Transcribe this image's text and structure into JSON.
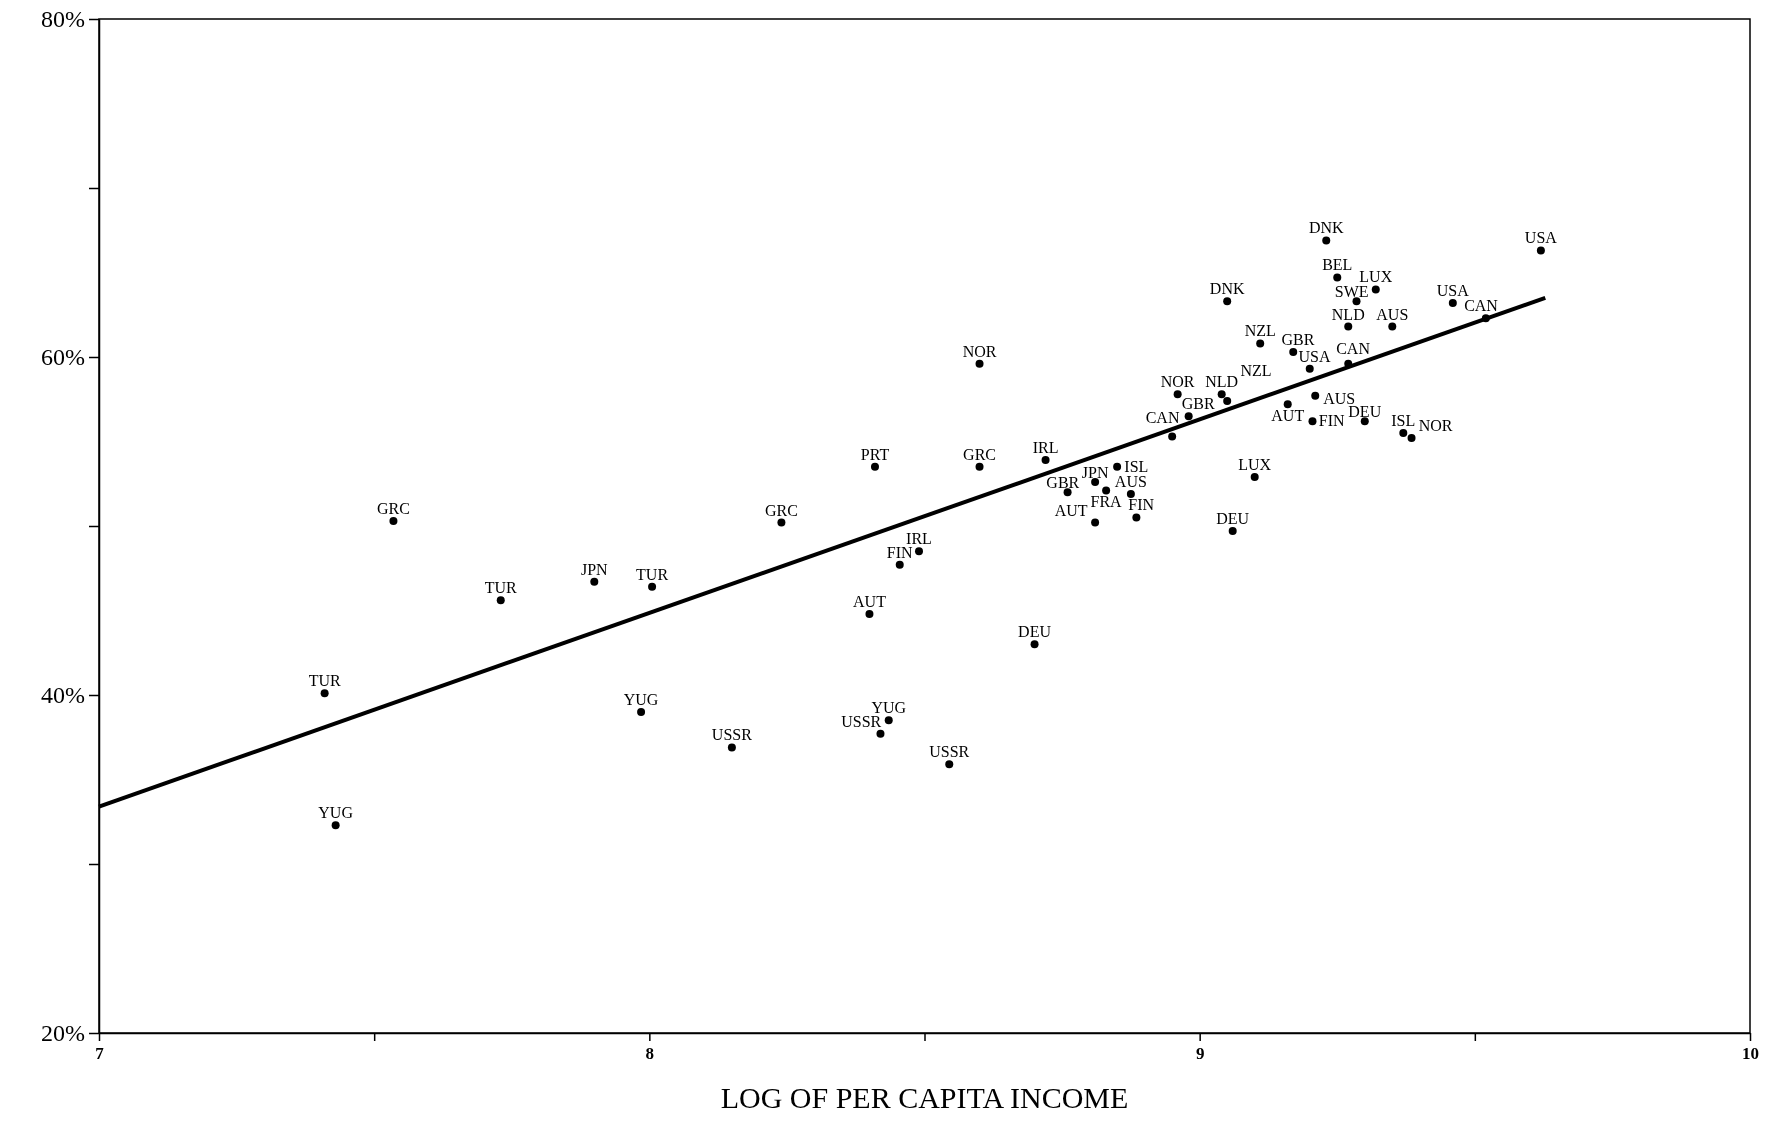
{
  "chart_data": {
    "type": "scatter",
    "xlabel": "LOG OF PER CAPITA INCOME",
    "xlim": [
      7,
      10
    ],
    "ylim": [
      20,
      80
    ],
    "xticks": [
      7,
      {
        "value": 7.5,
        "label": null
      },
      8,
      {
        "value": 8.5,
        "label": null
      },
      9,
      {
        "value": 9.5,
        "label": null
      },
      10
    ],
    "yticks": [
      {
        "value": 20,
        "label": "20%"
      },
      {
        "value": 30,
        "label": null
      },
      {
        "value": 40,
        "label": "40%"
      },
      {
        "value": 50,
        "label": null
      },
      {
        "value": 60,
        "label": "60%"
      },
      {
        "value": 70,
        "label": null
      },
      {
        "value": 80,
        "label": "80%"
      }
    ],
    "grid": false,
    "series": [
      {
        "color": "#000000",
        "marker": "circle",
        "x": [
          7.535,
          7.73,
          7.9,
          8.005,
          7.41,
          7.985,
          8.15,
          7.43,
          8.24,
          8.41,
          8.4,
          8.435,
          8.42,
          8.545,
          8.455,
          8.49,
          8.7,
          8.6,
          8.6,
          8.72,
          8.85,
          8.81,
          8.76,
          8.83,
          8.875,
          8.81,
          8.885,
          9.06,
          9.1,
          8.95,
          8.98,
          8.96,
          9.04,
          9.05,
          9.05,
          9.11,
          9.17,
          9.2,
          9.27,
          9.21,
          9.16,
          9.205,
          9.3,
          9.37,
          9.385,
          9.23,
          9.25,
          9.32,
          9.285,
          9.27,
          9.35,
          9.46,
          9.52,
          9.62
        ],
        "values": [
          50.3,
          45.6,
          46.7,
          46.4,
          40.1,
          39.0,
          36.9,
          32.3,
          50.2,
          53.5,
          44.8,
          38.5,
          37.7,
          35.9,
          47.7,
          48.5,
          43.0,
          59.6,
          53.5,
          53.9,
          53.5,
          52.6,
          52.0,
          52.1,
          51.9,
          50.2,
          50.5,
          49.7,
          52.9,
          55.3,
          56.5,
          57.8,
          57.8,
          57.4,
          63.3,
          60.8,
          60.3,
          59.3,
          59.6,
          57.7,
          57.2,
          56.2,
          56.2,
          55.5,
          55.2,
          66.9,
          64.7,
          64.0,
          63.3,
          61.8,
          61.8,
          63.2,
          62.3,
          66.3
        ],
        "value_labels": [
          "GRC",
          "TUR",
          "JPN",
          "TUR",
          "TUR",
          "YUG",
          "USSR",
          "YUG",
          "GRC",
          "PRT",
          "AUT",
          "YUG",
          "USSR",
          "USSR",
          "FIN",
          "IRL",
          "DEU",
          "NOR",
          "GRC",
          "IRL",
          "ISL",
          "JPN",
          "GBR",
          "FRA",
          "AUS",
          "AUT",
          "FIN",
          "DEU",
          "LUX",
          "CAN",
          "GBR",
          "NOR",
          "NLD",
          "NZL",
          "DNK",
          "NZL",
          "GBR",
          "USA",
          "CAN",
          "AUS",
          "AUT",
          "FIN",
          "DEU",
          "ISL",
          "NOR",
          "DNK",
          "BEL",
          "LUX",
          "SWE",
          "NLD",
          "AUS",
          "USA",
          "CAN",
          "USA"
        ]
      },
      {
        "type": "line",
        "color": "#000000",
        "x": [
          7,
          9.628
        ],
        "values": [
          33.4,
          63.5
        ]
      }
    ]
  }
}
